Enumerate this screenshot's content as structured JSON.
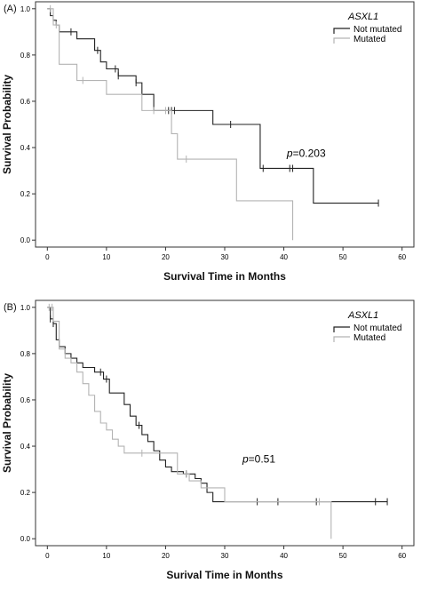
{
  "panels": [
    {
      "letter": "(A)",
      "xlabel": "Survival Time in Months",
      "ylabel": "Survival Probability",
      "legend_title": "ASXL1",
      "legend_items": [
        "Not mutated",
        "Mutated"
      ],
      "p_prefix": "p",
      "p_value": "=0.203"
    },
    {
      "letter": "(B)",
      "xlabel": "Surival Time in Months",
      "ylabel": "Survival Probability",
      "legend_title": "ASXL1",
      "legend_items": [
        "Not mutated",
        "Mutated"
      ],
      "p_prefix": "p",
      "p_value": "=0.51"
    }
  ],
  "colors": {
    "not_mutated": "#222222",
    "mutated": "#b3b3b3"
  },
  "chart_data": [
    {
      "type": "line",
      "step": true,
      "title": "",
      "xlabel": "Survival Time in Months",
      "ylabel": "Survival Probability",
      "xlim": [
        -2,
        62
      ],
      "ylim": [
        -0.03,
        1.03
      ],
      "xticks": [
        0,
        10,
        20,
        30,
        40,
        50,
        60
      ],
      "yticks": [
        0.0,
        0.2,
        0.4,
        0.6,
        0.8,
        1.0
      ],
      "legend_position": "top-right",
      "series": [
        {
          "name": "Not mutated",
          "x": [
            0,
            0.5,
            1,
            1.5,
            2,
            3,
            5,
            8,
            9,
            10,
            11,
            12,
            14,
            15,
            16,
            18,
            28,
            36,
            45,
            56
          ],
          "y": [
            1.0,
            0.97,
            0.95,
            0.93,
            0.9,
            0.9,
            0.87,
            0.82,
            0.77,
            0.74,
            0.74,
            0.71,
            0.71,
            0.68,
            0.63,
            0.56,
            0.5,
            0.31,
            0.16,
            0.16
          ],
          "censored_x": [
            4,
            8.5,
            11.5,
            12,
            15,
            20.5,
            21,
            21.5,
            31,
            36.5,
            41,
            41.5,
            56
          ]
        },
        {
          "name": "Mutated",
          "x": [
            0,
            1,
            2,
            5,
            10,
            16,
            21,
            22,
            32,
            41.5
          ],
          "y": [
            1.0,
            0.93,
            0.76,
            0.69,
            0.63,
            0.56,
            0.46,
            0.35,
            0.17,
            0.0
          ],
          "censored_x": [
            0.5,
            1.5,
            6,
            18,
            20,
            23.5
          ]
        }
      ],
      "annotations": [
        "p=0.203"
      ]
    },
    {
      "type": "line",
      "step": true,
      "title": "",
      "xlabel": "Surival Time in Months",
      "ylabel": "Survival Probability",
      "xlim": [
        -2,
        62
      ],
      "ylim": [
        -0.03,
        1.03
      ],
      "xticks": [
        0,
        10,
        20,
        30,
        40,
        50,
        60
      ],
      "yticks": [
        0.0,
        0.2,
        0.4,
        0.6,
        0.8,
        1.0
      ],
      "legend_position": "top-right",
      "series": [
        {
          "name": "Not mutated",
          "x": [
            0,
            0.5,
            1,
            1.5,
            2,
            3,
            4,
            5,
            6,
            8,
            9.5,
            10.5,
            11,
            13,
            14,
            15,
            16,
            17,
            18,
            19,
            20,
            21,
            23,
            25,
            26,
            27,
            28
          ],
          "y": [
            1.0,
            0.95,
            0.93,
            0.86,
            0.83,
            0.8,
            0.78,
            0.76,
            0.74,
            0.72,
            0.69,
            0.63,
            0.63,
            0.58,
            0.53,
            0.49,
            0.45,
            0.42,
            0.38,
            0.34,
            0.31,
            0.29,
            0.28,
            0.26,
            0.24,
            0.2,
            0.16
          ],
          "censored_x": [
            0.5,
            1,
            9,
            10,
            15.5,
            23.5,
            35.5,
            39,
            45.5,
            55.5,
            57.5
          ]
        },
        {
          "name": "Mutated",
          "x": [
            0,
            1,
            2,
            3,
            4,
            5,
            6,
            7,
            8,
            9,
            10,
            11,
            12,
            13,
            22,
            24,
            26,
            30,
            48
          ],
          "y": [
            1.0,
            0.94,
            0.82,
            0.78,
            0.76,
            0.72,
            0.67,
            0.62,
            0.55,
            0.5,
            0.47,
            0.43,
            0.4,
            0.37,
            0.28,
            0.25,
            0.22,
            0.16,
            0.0
          ],
          "censored_x": [
            0.3,
            0.8,
            16,
            23.5,
            46
          ]
        }
      ],
      "annotations": [
        "p=0.51"
      ]
    }
  ]
}
